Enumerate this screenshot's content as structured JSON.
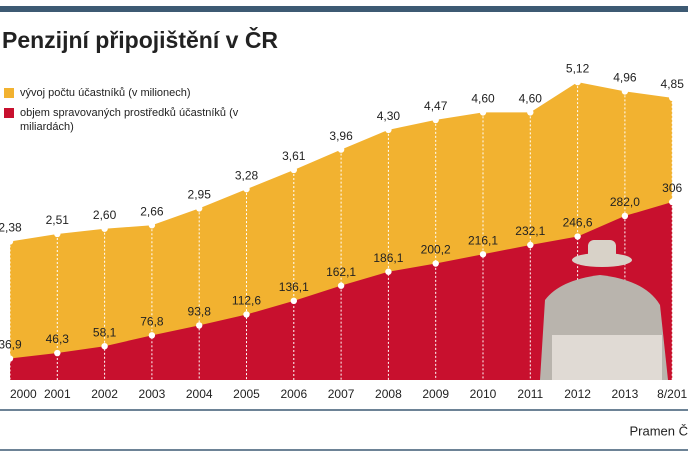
{
  "chart_data": {
    "type": "area",
    "title": "Penzijní připojištění v ČR",
    "source": "Pramen Č",
    "categories": [
      "2000",
      "2001",
      "2002",
      "2003",
      "2004",
      "2005",
      "2006",
      "2007",
      "2008",
      "2009",
      "2010",
      "2011",
      "2012",
      "2013",
      "8/201"
    ],
    "ylim": [
      0,
      5.5
    ],
    "y2lim": [
      0,
      550
    ],
    "series": [
      {
        "name": "vývoj počtu účastníků (v milionech)",
        "color": "#f2b230",
        "values": [
          2.38,
          2.51,
          2.6,
          2.66,
          2.95,
          3.28,
          3.61,
          3.96,
          4.3,
          4.47,
          4.6,
          4.6,
          5.12,
          4.96,
          4.85
        ],
        "value_labels": [
          "2,38",
          "2,51",
          "2,60",
          "2,66",
          "2,95",
          "3,28",
          "3,61",
          "3,96",
          "4,30",
          "4,47",
          "4,60",
          "4,60",
          "5,12",
          "4,96",
          "4,85"
        ]
      },
      {
        "name": "objem spravovaných prostředků účastníků (v miliardách)",
        "color": "#c8102e",
        "axis": "y2",
        "values": [
          36.9,
          46.3,
          58.1,
          76.8,
          93.8,
          112.6,
          136.1,
          162.1,
          186.1,
          200.2,
          216.1,
          232.1,
          246.6,
          282.0,
          306
        ],
        "value_labels": [
          "36,9",
          "46,3",
          "58,1",
          "76,8",
          "93,8",
          "112,6",
          "136,1",
          "162,1",
          "186,1",
          "200,2",
          "216,1",
          "232,1",
          "246,6",
          "282,0",
          "306"
        ]
      }
    ]
  }
}
